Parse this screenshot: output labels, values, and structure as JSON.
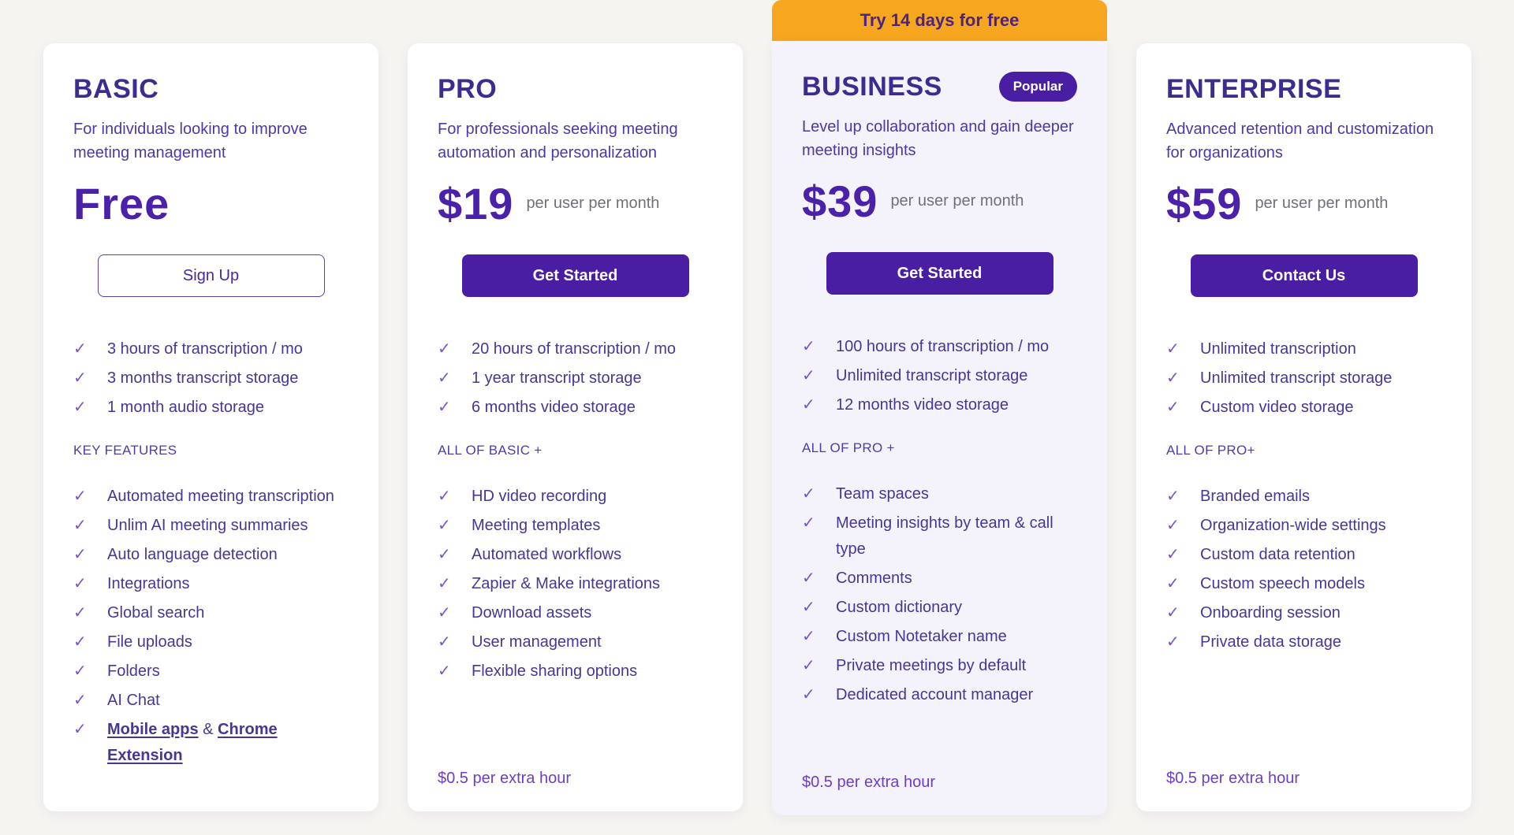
{
  "banner": {
    "text": "Try 14 days for free"
  },
  "icons": {
    "check": "✓"
  },
  "colors": {
    "page_bg": "#f5f4f1",
    "card_bg": "#ffffff",
    "business_card_bg": "#f4f2fb",
    "banner_bg": "#f6a71f",
    "banner_text": "#4d2383",
    "heading": "#3e2b92",
    "description": "#4a3aa8",
    "feature_text": "#463795",
    "check": "#7b52ce",
    "price": "#4b21aa",
    "price_suffix": "#71707a",
    "button_bg": "#4a1ea3",
    "button_text": "#ffffff",
    "outline_border": "#5b3db3",
    "badge_bg": "#4a1ea3",
    "footnote": "#6d3ec6"
  },
  "plans": [
    {
      "name": "BASIC",
      "description": "For individuals looking to improve meeting management",
      "price": "Free",
      "price_suffix": "",
      "cta": "Sign Up",
      "top_features": [
        "3 hours of transcription / mo",
        "3 months transcript storage",
        "1 month audio storage"
      ],
      "section_label": "KEY FEATURES",
      "features": [
        "Automated meeting transcription",
        "Unlim AI meeting summaries",
        "Auto language detection",
        "Integrations",
        "Global search",
        "File uploads",
        "Folders",
        "AI Chat"
      ],
      "link_feature": {
        "link1": "Mobile apps",
        "separator": " & ",
        "link2": "Chrome Extension"
      },
      "footnote": ""
    },
    {
      "name": "PRO",
      "description": "For professionals seeking meeting automation and personalization",
      "price": "$19",
      "price_suffix": "per user per month",
      "cta": "Get Started",
      "top_features": [
        "20 hours of transcription / mo",
        "1 year transcript storage",
        "6 months video storage"
      ],
      "section_label": "ALL OF BASIC +",
      "features": [
        "HD video recording",
        "Meeting templates",
        "Automated workflows",
        "Zapier & Make integrations",
        "Download assets",
        "User management",
        "Flexible sharing options"
      ],
      "footnote": "$0.5 per extra hour"
    },
    {
      "name": "BUSINESS",
      "badge": "Popular",
      "description": "Level up collaboration and gain deeper meeting insights",
      "price": "$39",
      "price_suffix": "per user per month",
      "cta": "Get Started",
      "top_features": [
        "100 hours of transcription / mo",
        "Unlimited transcript storage",
        "12 months video storage"
      ],
      "section_label": "ALL OF PRO +",
      "features": [
        "Team spaces",
        "Meeting insights by team & call type",
        "Comments",
        "Custom dictionary",
        "Custom Notetaker name",
        "Private meetings by default",
        "Dedicated account manager"
      ],
      "footnote": "$0.5 per extra hour"
    },
    {
      "name": "ENTERPRISE",
      "description": "Advanced retention and customization for organizations",
      "price": "$59",
      "price_suffix": "per user per month",
      "cta": "Contact Us",
      "top_features": [
        "Unlimited transcription",
        "Unlimited transcript storage",
        "Custom video storage"
      ],
      "section_label": "ALL OF PRO+",
      "features": [
        "Branded emails",
        "Organization-wide settings",
        "Custom data retention",
        "Custom speech models",
        "Onboarding session",
        "Private data storage"
      ],
      "footnote": "$0.5 per extra hour"
    }
  ]
}
